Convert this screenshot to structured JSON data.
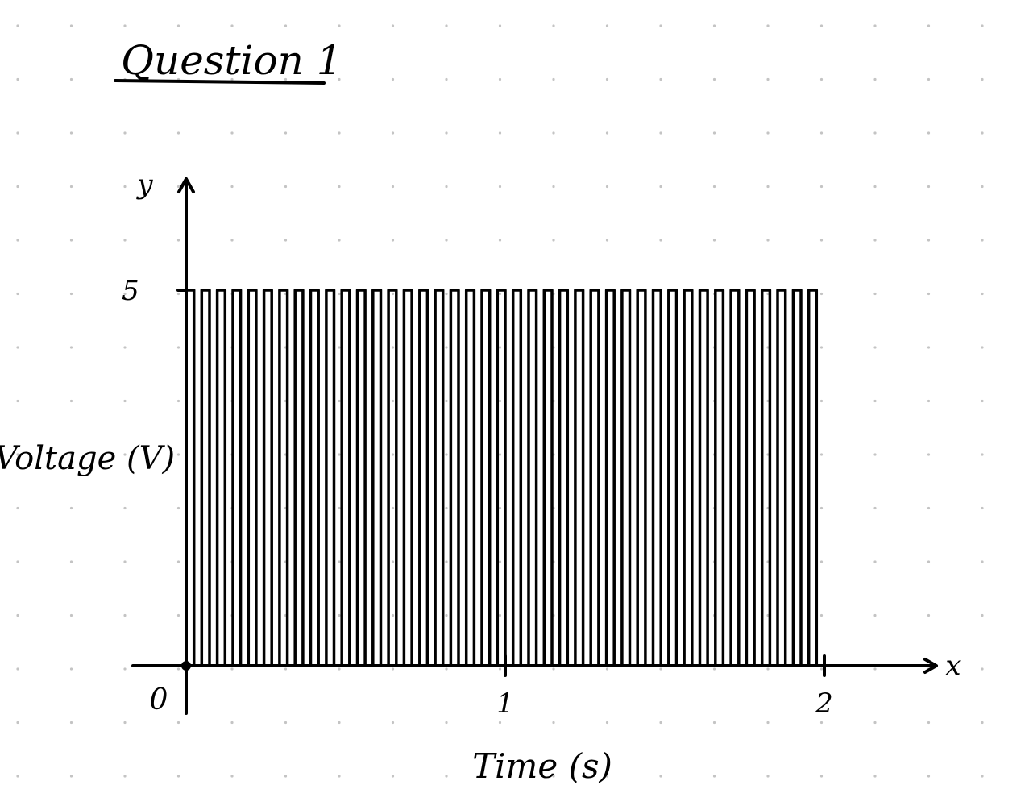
{
  "heading": "Question 1",
  "chart_data": {
    "type": "line",
    "subtype": "square-wave",
    "xlabel": "Time (s)",
    "ylabel": "Voltage (V)",
    "x_axis_letter": "x",
    "y_axis_letter": "y",
    "origin_label": "0",
    "x_ticks": [
      1,
      2
    ],
    "x_tick_labels": [
      "1",
      "2"
    ],
    "y_ticks": [
      5
    ],
    "y_tick_labels": [
      "5"
    ],
    "xlim": [
      0,
      2.3
    ],
    "ylim": [
      0,
      6
    ],
    "high_level": 5,
    "low_level": 0,
    "pulses_per_second": 20.5,
    "pulse_count": 41,
    "duty_cycle": 0.5,
    "end_time": 2.05,
    "grid": "dot-grid"
  }
}
